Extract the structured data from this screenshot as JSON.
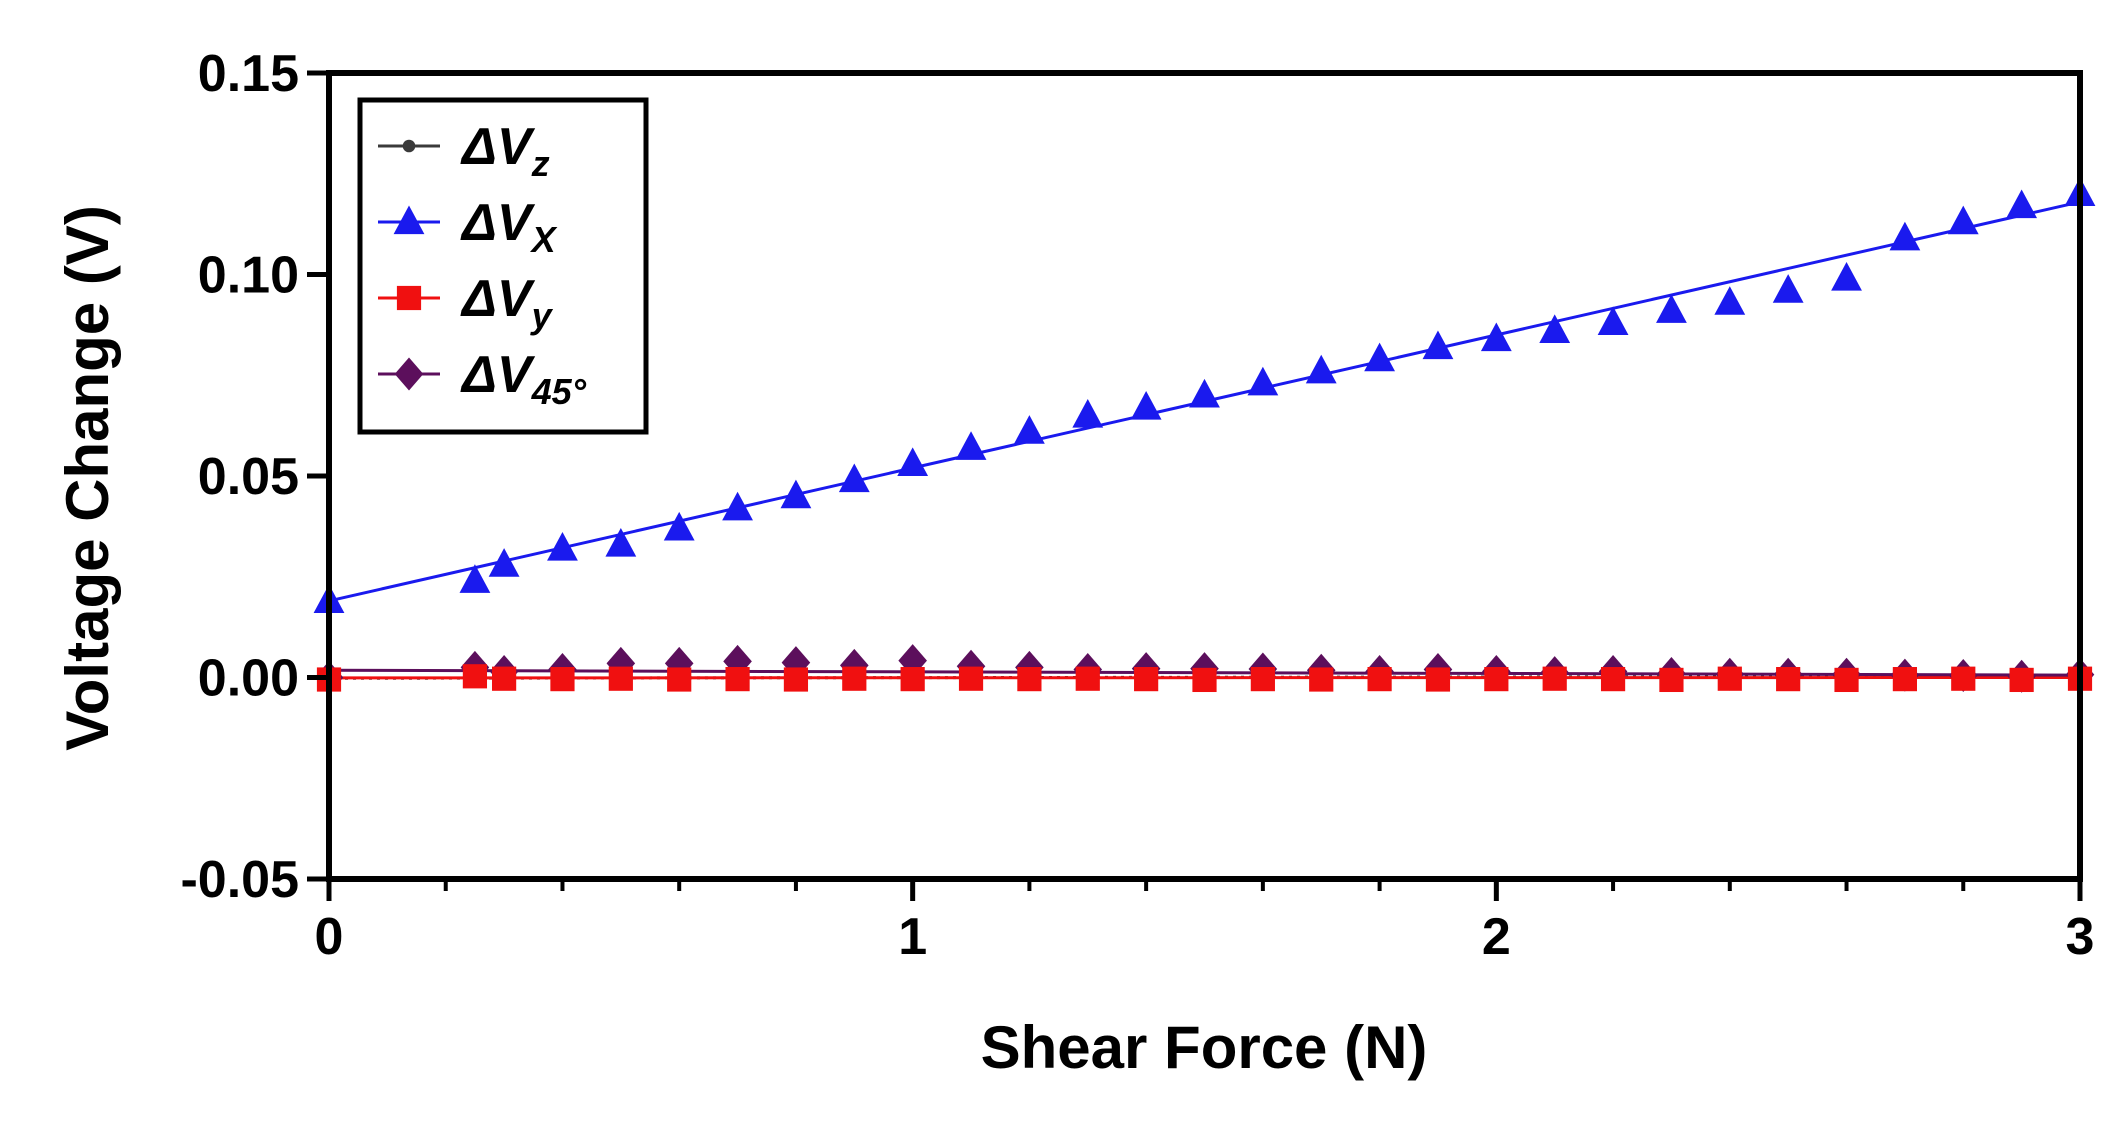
{
  "chart_data": {
    "type": "scatter",
    "title": "",
    "xlabel": "Shear Force (N)",
    "ylabel": "Voltage Change (V)",
    "xlim": [
      0,
      3
    ],
    "ylim": [
      -0.05,
      0.15
    ],
    "xticks": [
      0,
      1,
      2,
      3
    ],
    "xtick_labels": [
      "0",
      "1",
      "2",
      "3"
    ],
    "yticks": [
      -0.05,
      0.0,
      0.05,
      0.1,
      0.15
    ],
    "ytick_labels": [
      "-0.05",
      "0.00",
      "0.05",
      "0.10",
      "0.15"
    ],
    "grid": false,
    "legend_position": "top-left",
    "x": [
      0,
      0.25,
      0.3,
      0.4,
      0.5,
      0.6,
      0.7,
      0.8,
      0.9,
      1.0,
      1.1,
      1.2,
      1.3,
      1.4,
      1.5,
      1.6,
      1.7,
      1.8,
      1.9,
      2.0,
      2.1,
      2.2,
      2.3,
      2.4,
      2.5,
      2.6,
      2.7,
      2.8,
      2.9,
      3.0
    ],
    "series": [
      {
        "name_main": "ΔV",
        "name_sub": "z",
        "color": "#3a3a3a",
        "marker": "circle",
        "fit_line": "dotted",
        "fit": [
          0.0,
          -0.0002,
          3.0,
          0.0003
        ],
        "values": [
          0.0,
          -0.0003,
          -0.0002,
          -0.0004,
          -0.0002,
          -0.0003,
          -0.0002,
          -0.0003,
          -0.0002,
          -0.0002,
          -0.0003,
          -0.0002,
          -0.0003,
          -0.0002,
          -0.0003,
          -0.0002,
          -0.0002,
          -0.0003,
          -0.0002,
          -0.0002,
          -0.0001,
          -0.0002,
          -0.0002,
          -0.0001,
          -0.0002,
          -0.0001,
          0.0,
          0.0,
          0.0,
          0.0
        ]
      },
      {
        "name_main": "ΔV",
        "name_sub": "X",
        "color": "#1a1aee",
        "marker": "triangle",
        "fit_line": "solid",
        "fit": [
          0.0,
          0.019,
          3.0,
          0.118
        ],
        "values": [
          0.019,
          0.024,
          0.028,
          0.032,
          0.033,
          0.037,
          0.042,
          0.045,
          0.049,
          0.053,
          0.057,
          0.061,
          0.065,
          0.067,
          0.07,
          0.073,
          0.076,
          0.079,
          0.082,
          0.084,
          0.086,
          0.088,
          0.091,
          0.093,
          0.096,
          0.099,
          0.109,
          0.113,
          0.117,
          0.12
        ]
      },
      {
        "name_main": "ΔV",
        "name_sub": "y",
        "color": "#f01010",
        "marker": "square",
        "fit_line": "solid",
        "fit": [
          0.0,
          -0.0001,
          3.0,
          0.0
        ],
        "values": [
          -0.0005,
          0.0003,
          -0.0003,
          -0.0004,
          -0.0003,
          -0.0005,
          -0.0004,
          -0.0005,
          -0.0003,
          -0.0004,
          -0.0003,
          -0.0004,
          -0.0003,
          -0.0004,
          -0.0006,
          -0.0004,
          -0.0005,
          -0.0004,
          -0.0005,
          -0.0004,
          -0.0003,
          -0.0004,
          -0.0006,
          -0.0003,
          -0.0004,
          -0.0006,
          -0.0004,
          -0.0003,
          -0.0006,
          -0.0003
        ]
      },
      {
        "name_main": "ΔV",
        "name_sub": "45°",
        "color": "#5c0f5c",
        "marker": "diamond",
        "fit_line": "solid",
        "fit": [
          0.0,
          0.0018,
          3.0,
          0.0006
        ],
        "values": [
          0.0,
          0.0025,
          0.0015,
          0.002,
          0.0035,
          0.0035,
          0.004,
          0.0037,
          0.003,
          0.0042,
          0.0028,
          0.0025,
          0.002,
          0.0022,
          0.0022,
          0.0021,
          0.0018,
          0.0015,
          0.002,
          0.0015,
          0.0012,
          0.0015,
          0.001,
          0.0008,
          0.0008,
          0.0008,
          0.0006,
          0.0005,
          0.0003,
          0.0007
        ]
      }
    ]
  }
}
